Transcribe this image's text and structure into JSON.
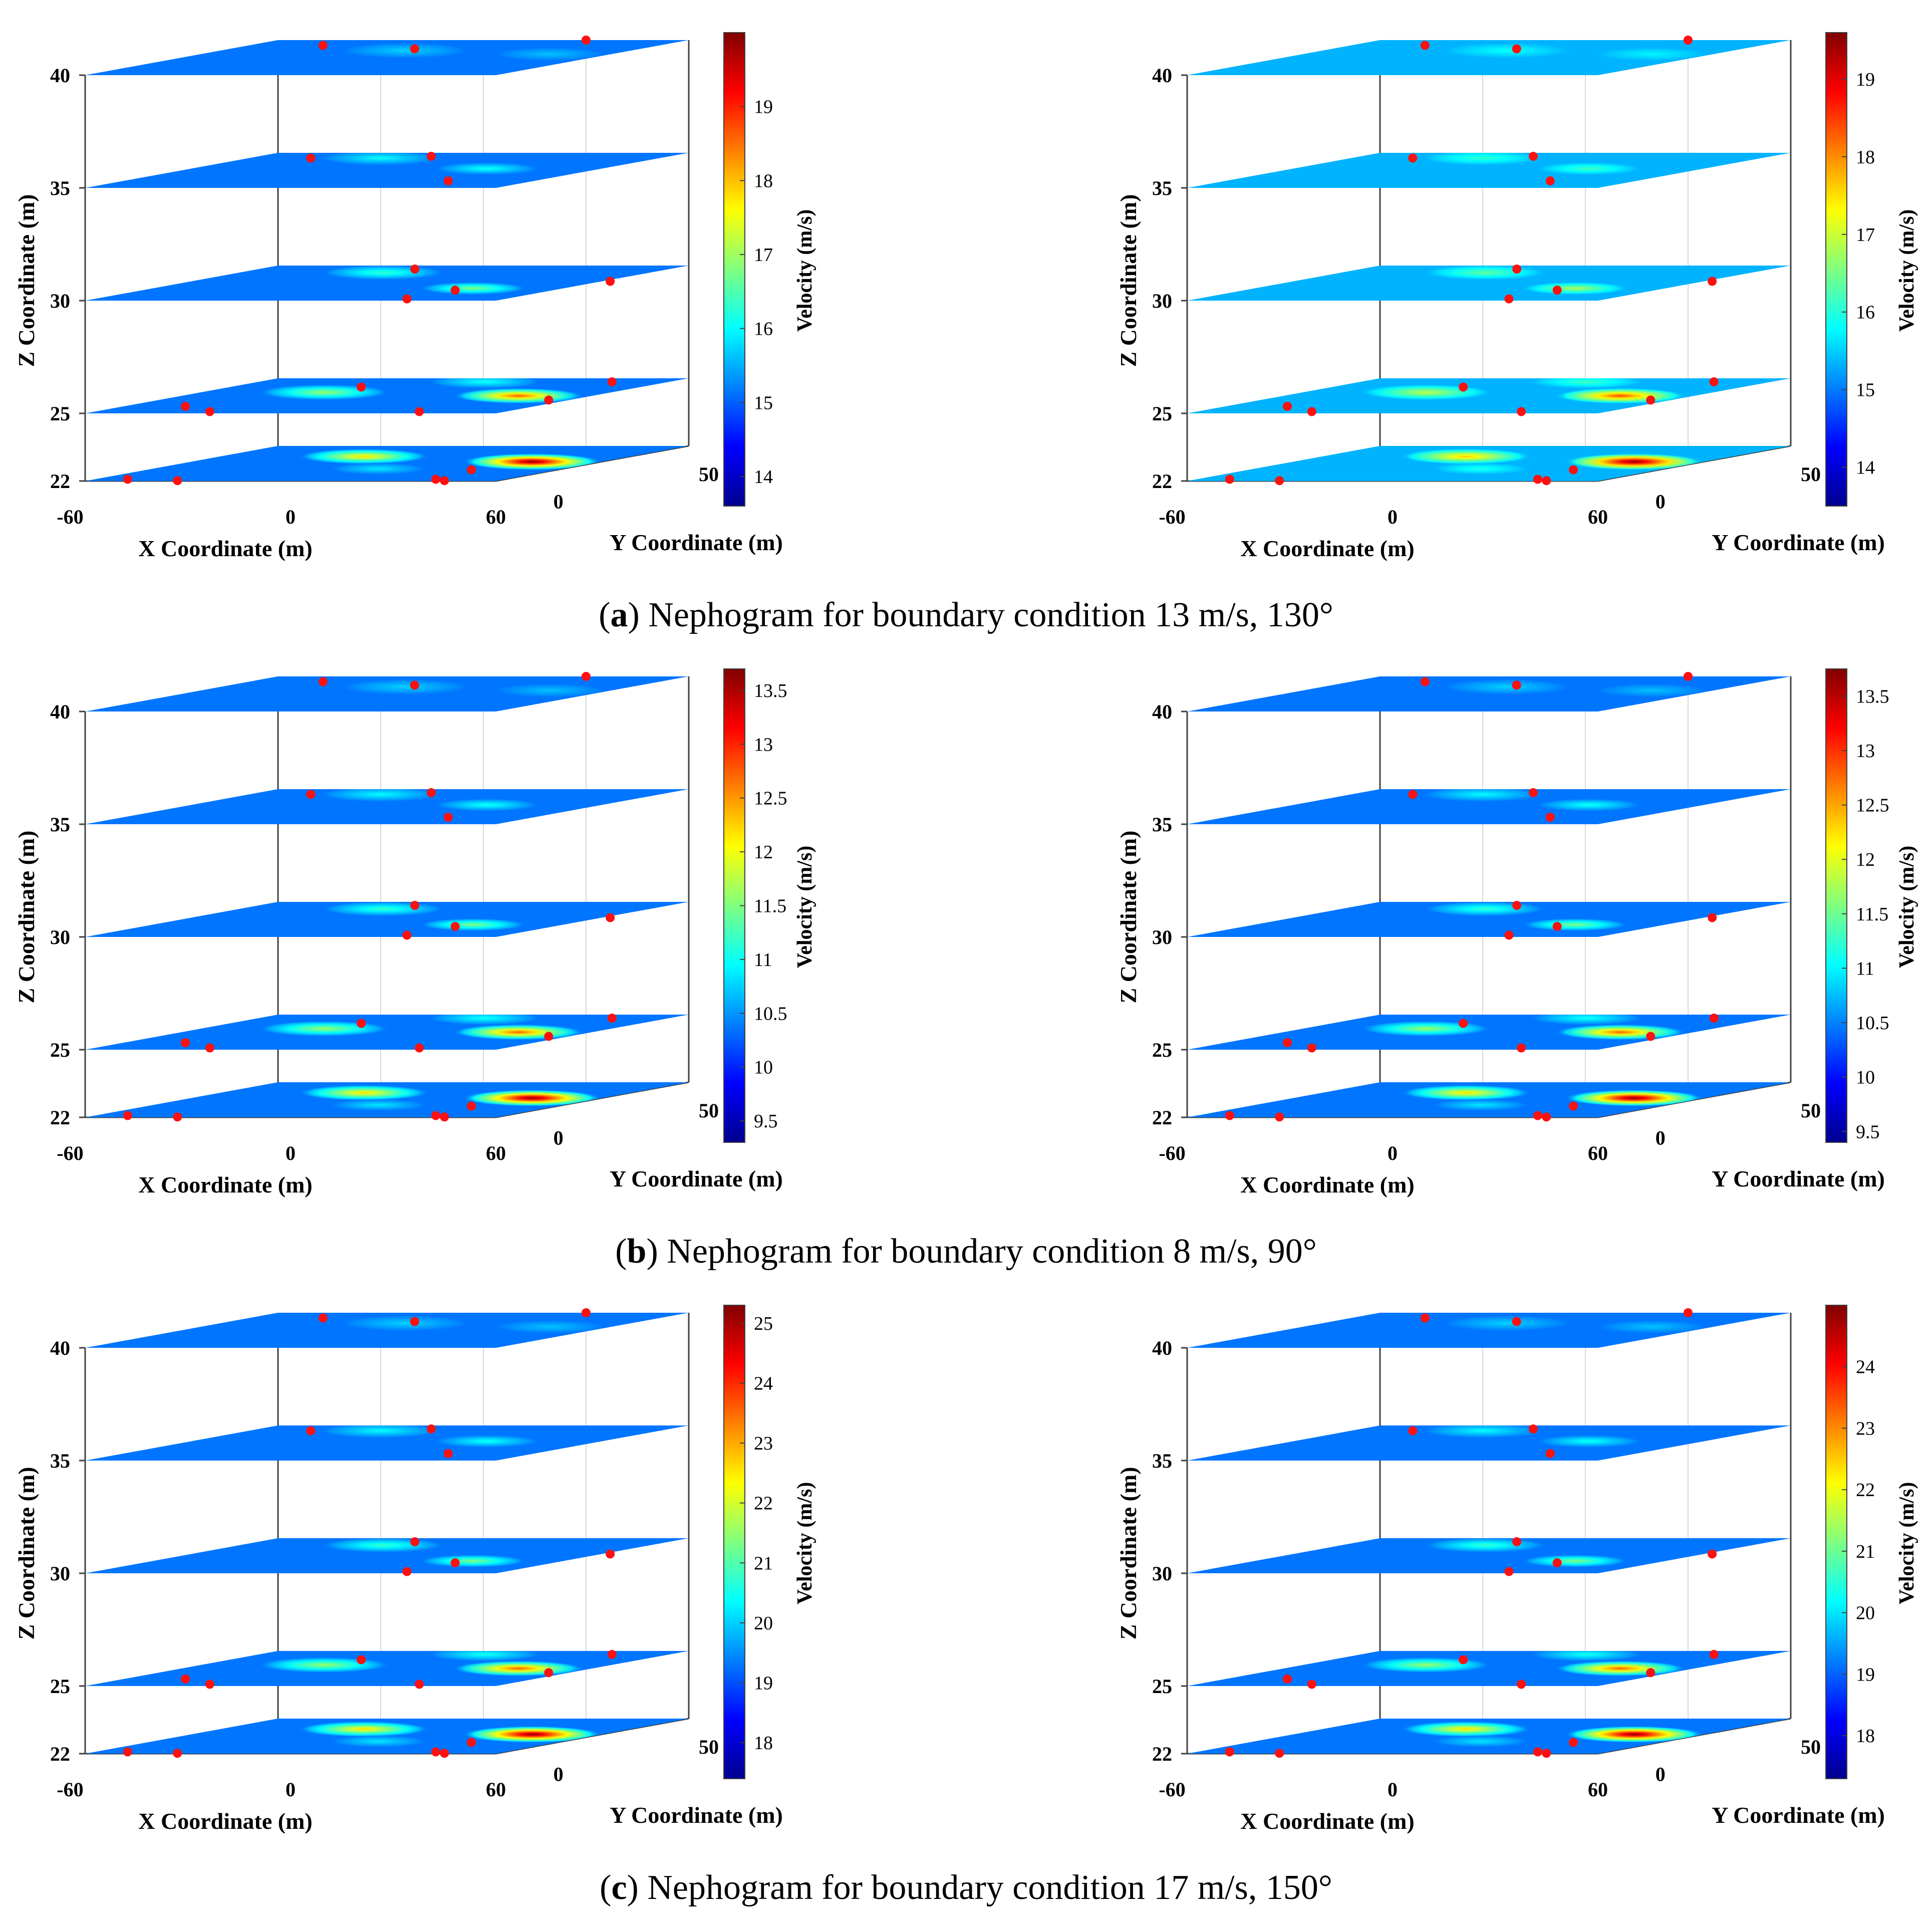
{
  "captions": [
    {
      "letter": "a",
      "text": "Nephogram for boundary condition 13 m/s, 130°"
    },
    {
      "letter": "b",
      "text": "Nephogram for boundary condition 8 m/s, 90°"
    },
    {
      "letter": "c",
      "text": "Nephogram for boundary condition 17 m/s, 150°"
    }
  ],
  "chart_data": [
    {
      "type": "heatmap",
      "id": "a-left",
      "xlabel": "X Coordinate (m)",
      "ylabel": "Y Coordinate (m)",
      "zlabel": "Z Coordinate (m)",
      "clabel": "Velocity (m/s)",
      "x_ticks": [
        "-60",
        "0",
        "60"
      ],
      "y_ticks": [
        "0",
        "50"
      ],
      "z_ticks": [
        "22",
        "25",
        "30",
        "35",
        "40"
      ],
      "layers": [
        22,
        25,
        30,
        35,
        40
      ],
      "clim": [
        13.6,
        20.0
      ],
      "c_ticks": [
        "14",
        "15",
        "16",
        "17",
        "18",
        "19"
      ],
      "base_tint": 0
    },
    {
      "type": "heatmap",
      "id": "a-right",
      "xlabel": "X Coordinate (m)",
      "ylabel": "Y Coordinate (m)",
      "zlabel": "Z Coordinate (m)",
      "clabel": "Velocity (m/s)",
      "x_ticks": [
        "-60",
        "0",
        "60"
      ],
      "y_ticks": [
        "0",
        "50"
      ],
      "z_ticks": [
        "22",
        "25",
        "30",
        "35",
        "40"
      ],
      "layers": [
        22,
        25,
        30,
        35,
        40
      ],
      "clim": [
        13.5,
        19.6
      ],
      "c_ticks": [
        "14",
        "15",
        "16",
        "17",
        "18",
        "19"
      ],
      "base_tint": 1
    },
    {
      "type": "heatmap",
      "id": "b-left",
      "xlabel": "X Coordinate (m)",
      "ylabel": "Y Coordinate (m)",
      "zlabel": "Z Coordinate (m)",
      "clabel": "Velocity (m/s)",
      "x_ticks": [
        "-60",
        "0",
        "60"
      ],
      "y_ticks": [
        "0",
        "50"
      ],
      "z_ticks": [
        "22",
        "25",
        "30",
        "35",
        "40"
      ],
      "layers": [
        22,
        25,
        30,
        35,
        40
      ],
      "clim": [
        9.3,
        13.7
      ],
      "c_ticks": [
        "9.5",
        "10",
        "10.5",
        "11",
        "11.5",
        "12",
        "12.5",
        "13",
        "13.5"
      ],
      "base_tint": 0
    },
    {
      "type": "heatmap",
      "id": "b-right",
      "xlabel": "X Coordinate (m)",
      "ylabel": "Y Coordinate (m)",
      "zlabel": "Z Coordinate (m)",
      "clabel": "Velocity (m/s)",
      "x_ticks": [
        "-60",
        "0",
        "60"
      ],
      "y_ticks": [
        "0",
        "50"
      ],
      "z_ticks": [
        "22",
        "25",
        "30",
        "35",
        "40"
      ],
      "layers": [
        22,
        25,
        30,
        35,
        40
      ],
      "clim": [
        9.4,
        13.75
      ],
      "c_ticks": [
        "9.5",
        "10",
        "10.5",
        "11",
        "11.5",
        "12",
        "12.5",
        "13",
        "13.5"
      ],
      "base_tint": 0
    },
    {
      "type": "heatmap",
      "id": "c-left",
      "xlabel": "X Coordinate (m)",
      "ylabel": "Y Coordinate (m)",
      "zlabel": "Z Coordinate (m)",
      "clabel": "Velocity (m/s)",
      "x_ticks": [
        "-60",
        "0",
        "60"
      ],
      "y_ticks": [
        "0",
        "50"
      ],
      "z_ticks": [
        "22",
        "25",
        "30",
        "35",
        "40"
      ],
      "layers": [
        22,
        25,
        30,
        35,
        40
      ],
      "clim": [
        17.4,
        25.3
      ],
      "c_ticks": [
        "18",
        "19",
        "20",
        "21",
        "22",
        "23",
        "24",
        "25"
      ],
      "base_tint": 0
    },
    {
      "type": "heatmap",
      "id": "c-right",
      "xlabel": "X Coordinate (m)",
      "ylabel": "Y Coordinate (m)",
      "zlabel": "Z Coordinate (m)",
      "clabel": "Velocity (m/s)",
      "x_ticks": [
        "-60",
        "0",
        "60"
      ],
      "y_ticks": [
        "0",
        "50"
      ],
      "z_ticks": [
        "22",
        "25",
        "30",
        "35",
        "40"
      ],
      "layers": [
        22,
        25,
        30,
        35,
        40
      ],
      "clim": [
        17.3,
        25.0
      ],
      "c_ticks": [
        "18",
        "19",
        "20",
        "21",
        "22",
        "23",
        "24"
      ],
      "base_tint": 0
    }
  ],
  "colors": {
    "background": "#ffffff",
    "axis": "#404040",
    "grid": "#d8d8d8",
    "marker": "#ff1010",
    "text": "#000000"
  }
}
